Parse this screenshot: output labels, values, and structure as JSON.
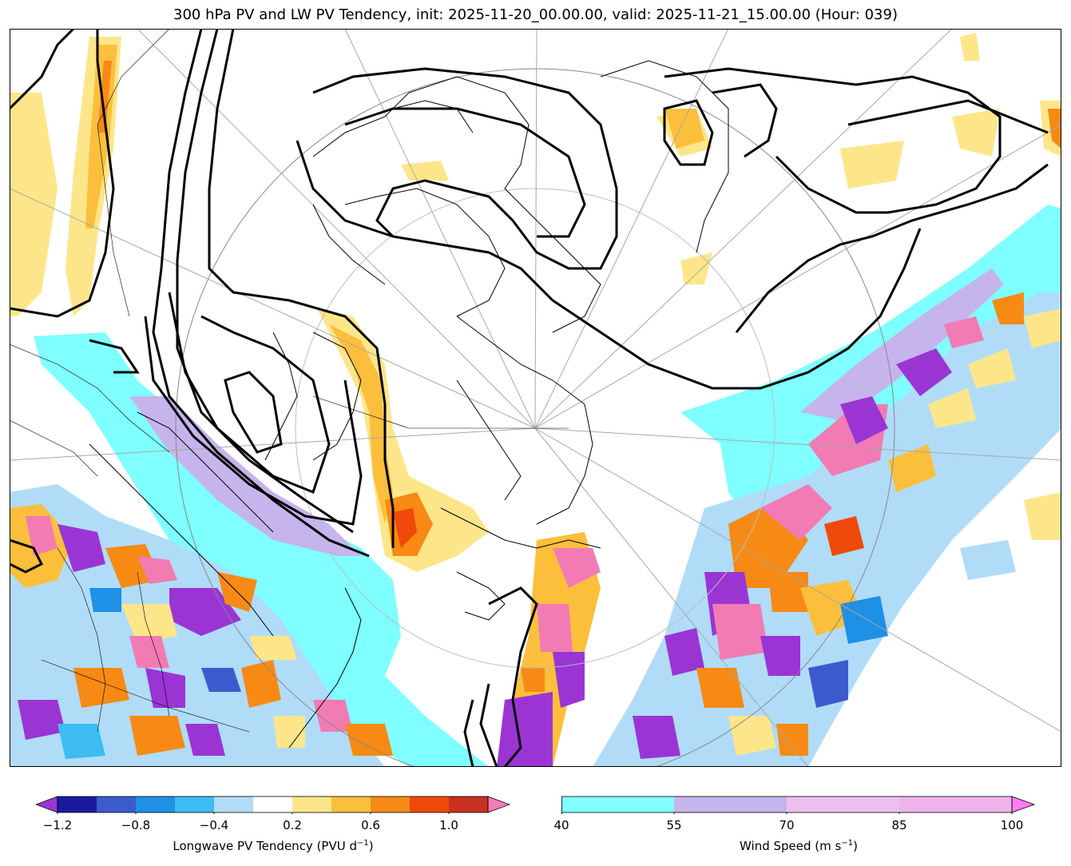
{
  "title": "300 hPa PV and LW PV Tendency, init: 2025-11-20_00.00.00, valid: 2025-11-21_15.00.00 (Hour: 039)",
  "colorbar_left": {
    "label": "Longwave PV Tendency (PVU d",
    "label_sup": "−1",
    "label_end": ")",
    "colors": [
      "#1a1aa0",
      "#3b5bcc",
      "#1e90e6",
      "#3cbcf0",
      "#b0dcf8",
      "#ffffff",
      "#fde68a",
      "#fbbf3c",
      "#f68a14",
      "#f04a0a",
      "#c83020"
    ],
    "under_color": "#9a35d4",
    "over_color": "#f27bb4",
    "tick_labels": [
      "−1.2",
      "−0.8",
      "−0.4",
      "0.2",
      "0.6",
      "1.0"
    ]
  },
  "colorbar_right": {
    "label": "Wind Speed (m s",
    "label_sup": "−1",
    "label_end": ")",
    "colors": [
      "#7fffff",
      "#c6b4ec",
      "#ecc0ec",
      "#f0b4ec"
    ],
    "over_color": "#ff7cf7",
    "tick_labels": [
      "40",
      "55",
      "70",
      "85",
      "100"
    ]
  },
  "field_colors": {
    "jet_cyan": "#7fffff",
    "jet_purple": "#c6b4ec",
    "pink": "#f27bb4",
    "purple": "#9a35d4",
    "orange": "#f68a14",
    "yellow": "#fde68a",
    "gold": "#fbbf3c",
    "blue": "#1e90e6",
    "lightblue": "#b0dcf8"
  }
}
